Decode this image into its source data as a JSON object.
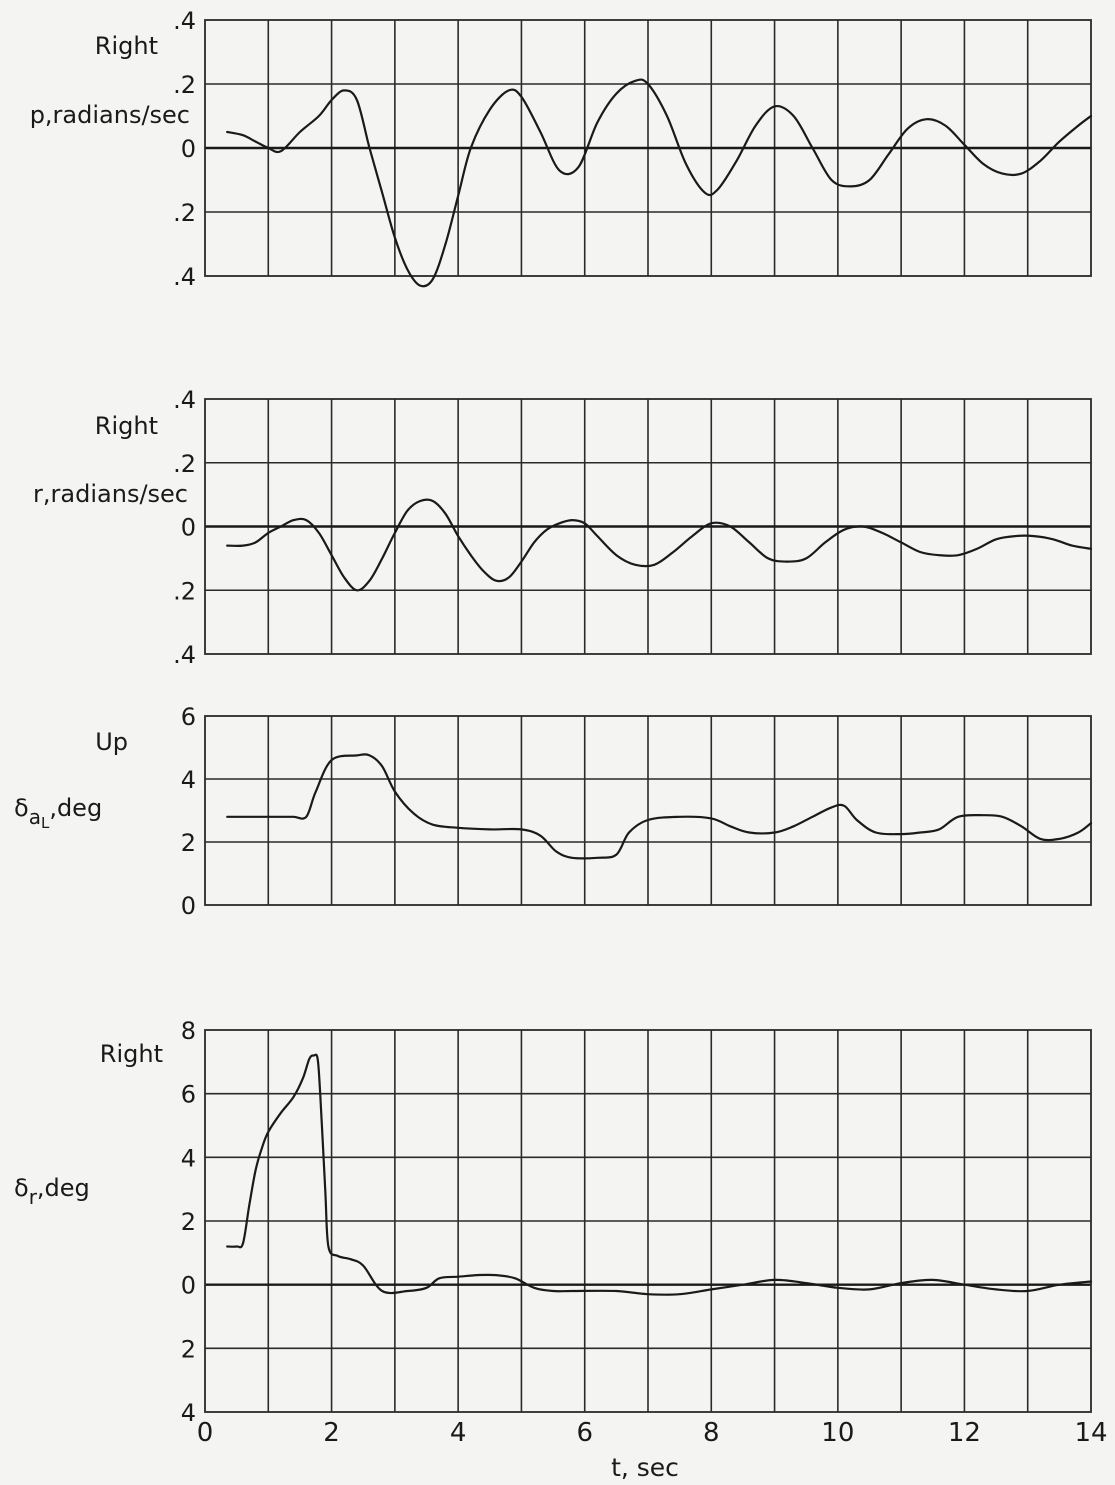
{
  "x_axis": {
    "label": "t, sec",
    "range": [
      0,
      14
    ],
    "ticks": [
      0,
      2,
      4,
      6,
      8,
      10,
      12,
      14
    ],
    "tick_labels": [
      "0",
      "2",
      "4",
      "6",
      "8",
      "10",
      "12",
      "14"
    ]
  },
  "chart_data": [
    {
      "type": "line",
      "direction_label": "Right",
      "ylabel": "p,radians/sec",
      "ylim": [
        -0.4,
        0.4
      ],
      "yticks": [
        0.4,
        0.2,
        0,
        -0.2,
        -0.4
      ],
      "ytick_labels": [
        ".4",
        ".2",
        "0",
        ".2",
        ".4"
      ],
      "grid": true,
      "x": [
        0.35,
        0.6,
        0.8,
        1.0,
        1.2,
        1.5,
        1.8,
        2.0,
        2.2,
        2.4,
        2.6,
        2.8,
        3.0,
        3.2,
        3.4,
        3.6,
        3.8,
        4.0,
        4.2,
        4.5,
        4.8,
        5.0,
        5.3,
        5.6,
        5.9,
        6.2,
        6.5,
        6.8,
        7.0,
        7.3,
        7.6,
        7.9,
        8.1,
        8.4,
        8.7,
        9.0,
        9.3,
        9.6,
        9.9,
        10.2,
        10.5,
        10.8,
        11.1,
        11.4,
        11.7,
        12.0,
        12.3,
        12.6,
        12.9,
        13.2,
        13.5,
        13.8,
        14.0
      ],
      "values": [
        0.05,
        0.04,
        0.02,
        0.0,
        -0.01,
        0.05,
        0.1,
        0.15,
        0.18,
        0.15,
        0.0,
        -0.14,
        -0.28,
        -0.38,
        -0.43,
        -0.41,
        -0.3,
        -0.15,
        0.0,
        0.12,
        0.18,
        0.16,
        0.05,
        -0.07,
        -0.06,
        0.08,
        0.17,
        0.21,
        0.2,
        0.1,
        -0.05,
        -0.14,
        -0.13,
        -0.04,
        0.07,
        0.13,
        0.1,
        0.0,
        -0.1,
        -0.12,
        -0.1,
        -0.02,
        0.06,
        0.09,
        0.07,
        0.01,
        -0.05,
        -0.08,
        -0.08,
        -0.04,
        0.02,
        0.07,
        0.1
      ]
    },
    {
      "type": "line",
      "direction_label": "Right",
      "ylabel": "r,radians/sec",
      "ylim": [
        -0.4,
        0.4
      ],
      "yticks": [
        0.4,
        0.2,
        0,
        -0.2,
        -0.4
      ],
      "ytick_labels": [
        ".4",
        ".2",
        "0",
        ".2",
        ".4"
      ],
      "grid": true,
      "x": [
        0.35,
        0.6,
        0.8,
        1.0,
        1.2,
        1.4,
        1.6,
        1.8,
        2.0,
        2.2,
        2.4,
        2.6,
        2.8,
        3.0,
        3.2,
        3.4,
        3.6,
        3.8,
        4.0,
        4.2,
        4.4,
        4.6,
        4.8,
        5.0,
        5.2,
        5.4,
        5.6,
        5.8,
        6.0,
        6.2,
        6.5,
        6.8,
        7.1,
        7.4,
        7.7,
        8.0,
        8.3,
        8.6,
        8.9,
        9.2,
        9.5,
        9.8,
        10.1,
        10.4,
        10.7,
        11.0,
        11.3,
        11.6,
        11.9,
        12.2,
        12.5,
        12.8,
        13.1,
        13.4,
        13.7,
        14.0
      ],
      "values": [
        -0.06,
        -0.06,
        -0.05,
        -0.02,
        0.0,
        0.02,
        0.02,
        -0.02,
        -0.09,
        -0.16,
        -0.2,
        -0.17,
        -0.1,
        -0.02,
        0.05,
        0.08,
        0.08,
        0.04,
        -0.03,
        -0.09,
        -0.14,
        -0.17,
        -0.16,
        -0.11,
        -0.05,
        -0.01,
        0.01,
        0.02,
        0.01,
        -0.03,
        -0.09,
        -0.12,
        -0.12,
        -0.08,
        -0.03,
        0.01,
        0.0,
        -0.05,
        -0.1,
        -0.11,
        -0.1,
        -0.05,
        -0.01,
        0.0,
        -0.02,
        -0.05,
        -0.08,
        -0.09,
        -0.09,
        -0.07,
        -0.04,
        -0.03,
        -0.03,
        -0.04,
        -0.06,
        -0.07
      ]
    },
    {
      "type": "line",
      "direction_label": "Up",
      "ylabel": "δaL,deg",
      "ylabel_parts": {
        "symbol": "δ",
        "sub": "a",
        "subsub": "L",
        "unit": ",deg"
      },
      "ylim": [
        0,
        6
      ],
      "yticks": [
        6,
        4,
        2,
        0
      ],
      "ytick_labels": [
        "6",
        "4",
        "2",
        "0"
      ],
      "grid": true,
      "x": [
        0.35,
        0.8,
        1.2,
        1.4,
        1.6,
        1.75,
        2.0,
        2.4,
        2.6,
        2.8,
        3.0,
        3.3,
        3.6,
        4.0,
        4.5,
        5.0,
        5.3,
        5.55,
        5.8,
        6.2,
        6.5,
        6.7,
        7.0,
        7.5,
        8.0,
        8.3,
        8.6,
        9.0,
        9.3,
        9.6,
        9.9,
        10.1,
        10.3,
        10.6,
        11.0,
        11.3,
        11.6,
        11.9,
        12.3,
        12.6,
        12.9,
        13.2,
        13.5,
        13.8,
        14.0
      ],
      "values": [
        2.8,
        2.8,
        2.8,
        2.8,
        2.8,
        3.6,
        4.6,
        4.75,
        4.75,
        4.4,
        3.6,
        2.9,
        2.55,
        2.45,
        2.4,
        2.4,
        2.2,
        1.7,
        1.5,
        1.5,
        1.6,
        2.3,
        2.7,
        2.8,
        2.75,
        2.5,
        2.3,
        2.3,
        2.5,
        2.8,
        3.1,
        3.15,
        2.7,
        2.3,
        2.25,
        2.3,
        2.4,
        2.8,
        2.85,
        2.8,
        2.5,
        2.1,
        2.1,
        2.3,
        2.6
      ]
    },
    {
      "type": "line",
      "direction_label": "Right",
      "ylabel": "δr,deg",
      "ylabel_parts": {
        "symbol": "δ",
        "sub": "r",
        "unit": ",deg"
      },
      "ylim": [
        -4,
        8
      ],
      "yticks": [
        8,
        6,
        4,
        2,
        0,
        -2,
        -4
      ],
      "ytick_labels": [
        "8",
        "6",
        "4",
        "2",
        "0",
        "2",
        "4"
      ],
      "grid": true,
      "x": [
        0.35,
        0.5,
        0.6,
        0.7,
        0.8,
        0.9,
        1.0,
        1.2,
        1.4,
        1.55,
        1.65,
        1.72,
        1.78,
        1.82,
        1.9,
        1.95,
        2.1,
        2.3,
        2.5,
        2.8,
        3.2,
        3.5,
        3.7,
        4.0,
        4.3,
        4.6,
        4.9,
        5.2,
        5.5,
        5.8,
        6.5,
        7.0,
        7.5,
        8.0,
        8.5,
        9.0,
        9.5,
        10.0,
        10.5,
        11.0,
        11.5,
        12.0,
        12.5,
        13.0,
        13.5,
        14.0
      ],
      "values": [
        1.2,
        1.2,
        1.3,
        2.5,
        3.6,
        4.3,
        4.8,
        5.4,
        5.9,
        6.5,
        7.1,
        7.2,
        7.1,
        6.0,
        3.0,
        1.2,
        0.9,
        0.8,
        0.6,
        -0.2,
        -0.2,
        -0.1,
        0.2,
        0.25,
        0.3,
        0.3,
        0.2,
        -0.1,
        -0.2,
        -0.2,
        -0.2,
        -0.3,
        -0.3,
        -0.15,
        0.0,
        0.15,
        0.05,
        -0.1,
        -0.15,
        0.05,
        0.15,
        0.0,
        -0.15,
        -0.2,
        0.0,
        0.1
      ]
    }
  ]
}
